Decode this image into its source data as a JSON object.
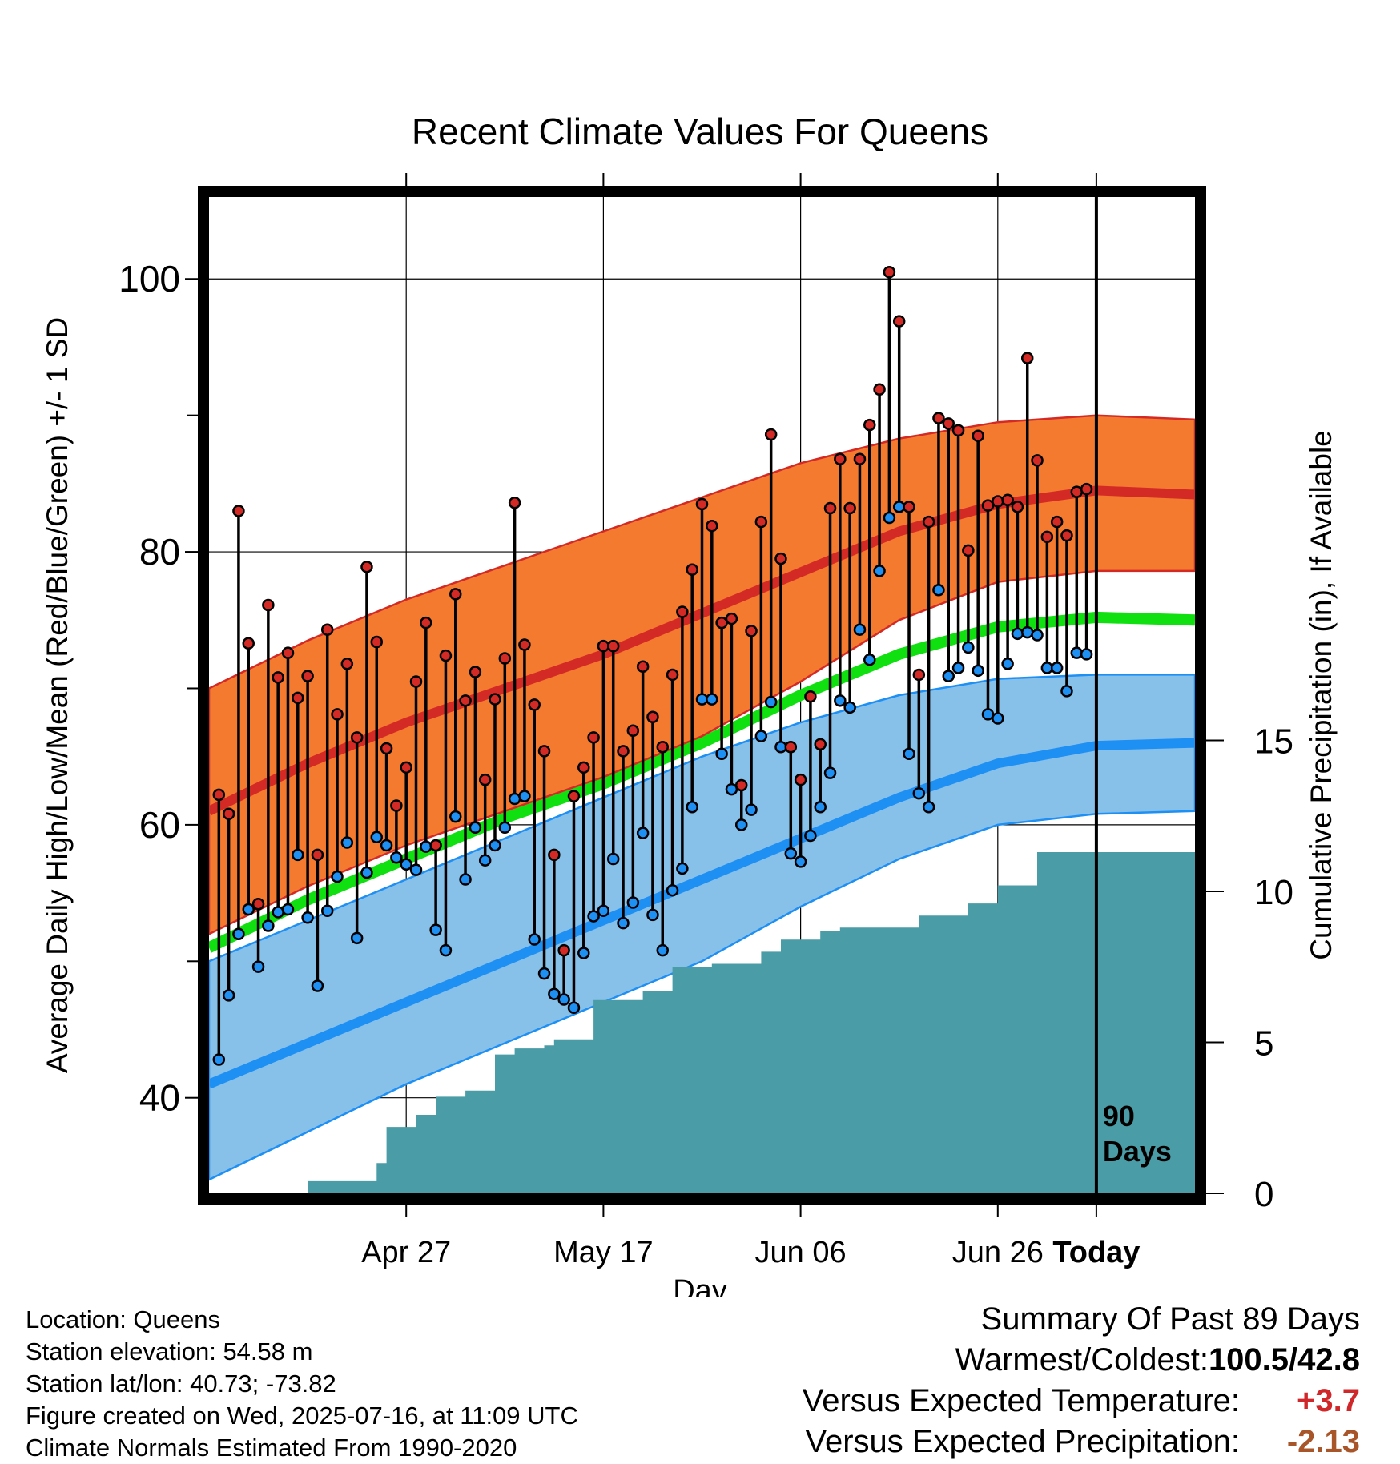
{
  "chart_data": {
    "type": "line",
    "title": "Recent Climate Values For Queens",
    "xlabel": "Day",
    "ylabel": "Average Daily High/Low/Mean (Red/Blue/Green) +/- 1 SD",
    "y2label": "Cumulative Precipitation (in), If Available",
    "x_tick_labels": [
      "Apr 27",
      "May 17",
      "Jun 06",
      "Jun 26",
      "Today"
    ],
    "y_ticks": [
      40,
      60,
      80,
      100
    ],
    "y2_ticks": [
      0,
      5,
      10,
      15
    ],
    "ylim": [
      33,
      106
    ],
    "y2lim": [
      0,
      33
    ],
    "x_range_days": [
      -90,
      10
    ],
    "today_marker_label": [
      "90",
      "Days"
    ],
    "grid": true,
    "colors": {
      "high_band": "#f47a30",
      "high_line": "#d42a26",
      "mean_line": "#10e010",
      "low_band": "#87c1ea",
      "low_line": "#1e8ff3",
      "precip": "#4a9ca6",
      "warm_value": "#d0282a",
      "precip_value": "#a8552a"
    },
    "normals": {
      "day": [
        -90,
        -80,
        -70,
        -60,
        -50,
        -40,
        -30,
        -20,
        -10,
        0,
        10
      ],
      "high_mean": [
        61,
        64.5,
        67.5,
        70,
        72.5,
        75.5,
        78.5,
        81.5,
        83.5,
        84.5,
        84.2
      ],
      "high_upper": [
        70,
        73.5,
        76.5,
        79,
        81.5,
        84,
        86.5,
        88.3,
        89.5,
        90,
        89.7
      ],
      "high_lower": [
        52,
        55.5,
        58.5,
        61,
        63.5,
        66.5,
        70.5,
        75,
        77.8,
        78.6,
        78.6
      ],
      "mean": [
        51,
        54.5,
        57.5,
        60.5,
        63,
        66,
        69.5,
        72.5,
        74.5,
        75.2,
        75
      ],
      "low_mean": [
        41,
        44,
        47,
        50,
        53,
        56,
        59,
        62,
        64.5,
        65.8,
        66
      ],
      "low_upper": [
        50,
        53,
        56,
        59,
        62,
        65,
        67.5,
        69.5,
        70.7,
        71,
        71
      ],
      "low_lower": [
        34,
        37.5,
        41,
        44,
        47,
        50,
        54,
        57.5,
        60,
        60.8,
        61
      ]
    },
    "series": [
      {
        "name": "High",
        "values": [
          62.2,
          60.8,
          83,
          73.3,
          54.2,
          76.1,
          70.8,
          72.6,
          69.3,
          70.9,
          57.8,
          74.3,
          68.1,
          71.8,
          66.4,
          78.9,
          73.4,
          65.6,
          61.4,
          64.2,
          70.5,
          74.8,
          58.5,
          72.4,
          76.9,
          69.1,
          71.2,
          63.3,
          69.2,
          72.2,
          83.6,
          73.2,
          68.8,
          65.4,
          57.8,
          50.8,
          62.1,
          64.2,
          66.4,
          73.1,
          73.1,
          65.4,
          66.9,
          71.6,
          67.9,
          65.7,
          71,
          75.6,
          78.7,
          83.5,
          81.9,
          74.8,
          75.1,
          62.9,
          74.2,
          82.2,
          88.6,
          79.5,
          65.7,
          63.3,
          69.4,
          65.9,
          83.2,
          86.8,
          83.2,
          86.8,
          89.3,
          91.9,
          100.5,
          96.9,
          83.3,
          71,
          82.2,
          89.8,
          89.4,
          88.9,
          80.1,
          88.5,
          83.4,
          83.7,
          83.8,
          83.3,
          94.2,
          86.7,
          81.1,
          82.2,
          81.2,
          84.4,
          84.6
        ]
      },
      {
        "name": "Low",
        "values": [
          42.8,
          47.5,
          52,
          53.8,
          49.6,
          52.6,
          53.6,
          53.8,
          57.8,
          53.2,
          48.2,
          53.7,
          56.2,
          58.7,
          51.7,
          56.5,
          59.1,
          58.5,
          57.6,
          57.1,
          56.7,
          58.4,
          52.3,
          50.8,
          60.6,
          56,
          59.8,
          57.4,
          58.5,
          59.8,
          61.9,
          62.1,
          51.6,
          49.1,
          47.6,
          47.2,
          46.6,
          50.6,
          53.3,
          53.7,
          57.5,
          52.8,
          54.3,
          59.4,
          53.4,
          50.8,
          55.2,
          56.8,
          61.3,
          69.2,
          69.2,
          65.2,
          62.6,
          60,
          61.1,
          66.5,
          69,
          65.7,
          57.9,
          57.3,
          59.2,
          61.3,
          63.8,
          69.1,
          68.6,
          74.3,
          72.1,
          78.6,
          82.5,
          83.3,
          65.2,
          62.3,
          61.3,
          77.2,
          70.9,
          71.5,
          73,
          71.3,
          68.1,
          67.8,
          71.8,
          74,
          74.1,
          73.9,
          71.5,
          71.5,
          69.8,
          72.6,
          72.5
        ]
      },
      {
        "name": "Cumulative Precipitation",
        "day": [
          -90,
          -81,
          -80,
          -76,
          -73,
          -72,
          -69,
          -67,
          -64,
          -61,
          -59,
          -58,
          -56,
          -55,
          -51,
          -50,
          -46,
          -43,
          -42,
          -39,
          -36,
          -34,
          -32,
          -28,
          -26,
          -20,
          -18,
          -16,
          -13,
          -10,
          -7,
          -6,
          0,
          10
        ],
        "values": [
          0,
          0,
          0.4,
          0.4,
          1,
          2.2,
          2.6,
          3.2,
          3.4,
          4.6,
          4.8,
          4.8,
          4.9,
          5.1,
          6.4,
          6.4,
          6.7,
          7.5,
          7.5,
          7.6,
          7.6,
          8,
          8.4,
          8.7,
          8.8,
          8.8,
          9.2,
          9.2,
          9.6,
          10.2,
          10.2,
          11.3,
          11.3,
          11.3
        ]
      }
    ]
  },
  "info": {
    "location": "Location: Queens",
    "elevation": "Station elevation: 54.58 m",
    "latlon": "Station lat/lon: 40.73; -73.82",
    "created": "Figure created on Wed, 2025-07-16, at 11:09 UTC",
    "normals": "Climate Normals Estimated From 1990-2020"
  },
  "summary": {
    "heading": "Summary Of Past 89 Days",
    "warm_cold_label": "Warmest/Coldest:",
    "warm_cold_value": "100.5/42.8",
    "temp_label": "Versus Expected Temperature:",
    "temp_value": "+3.7",
    "precip_label": "Versus Expected Precipitation:",
    "precip_value": "-2.13"
  }
}
